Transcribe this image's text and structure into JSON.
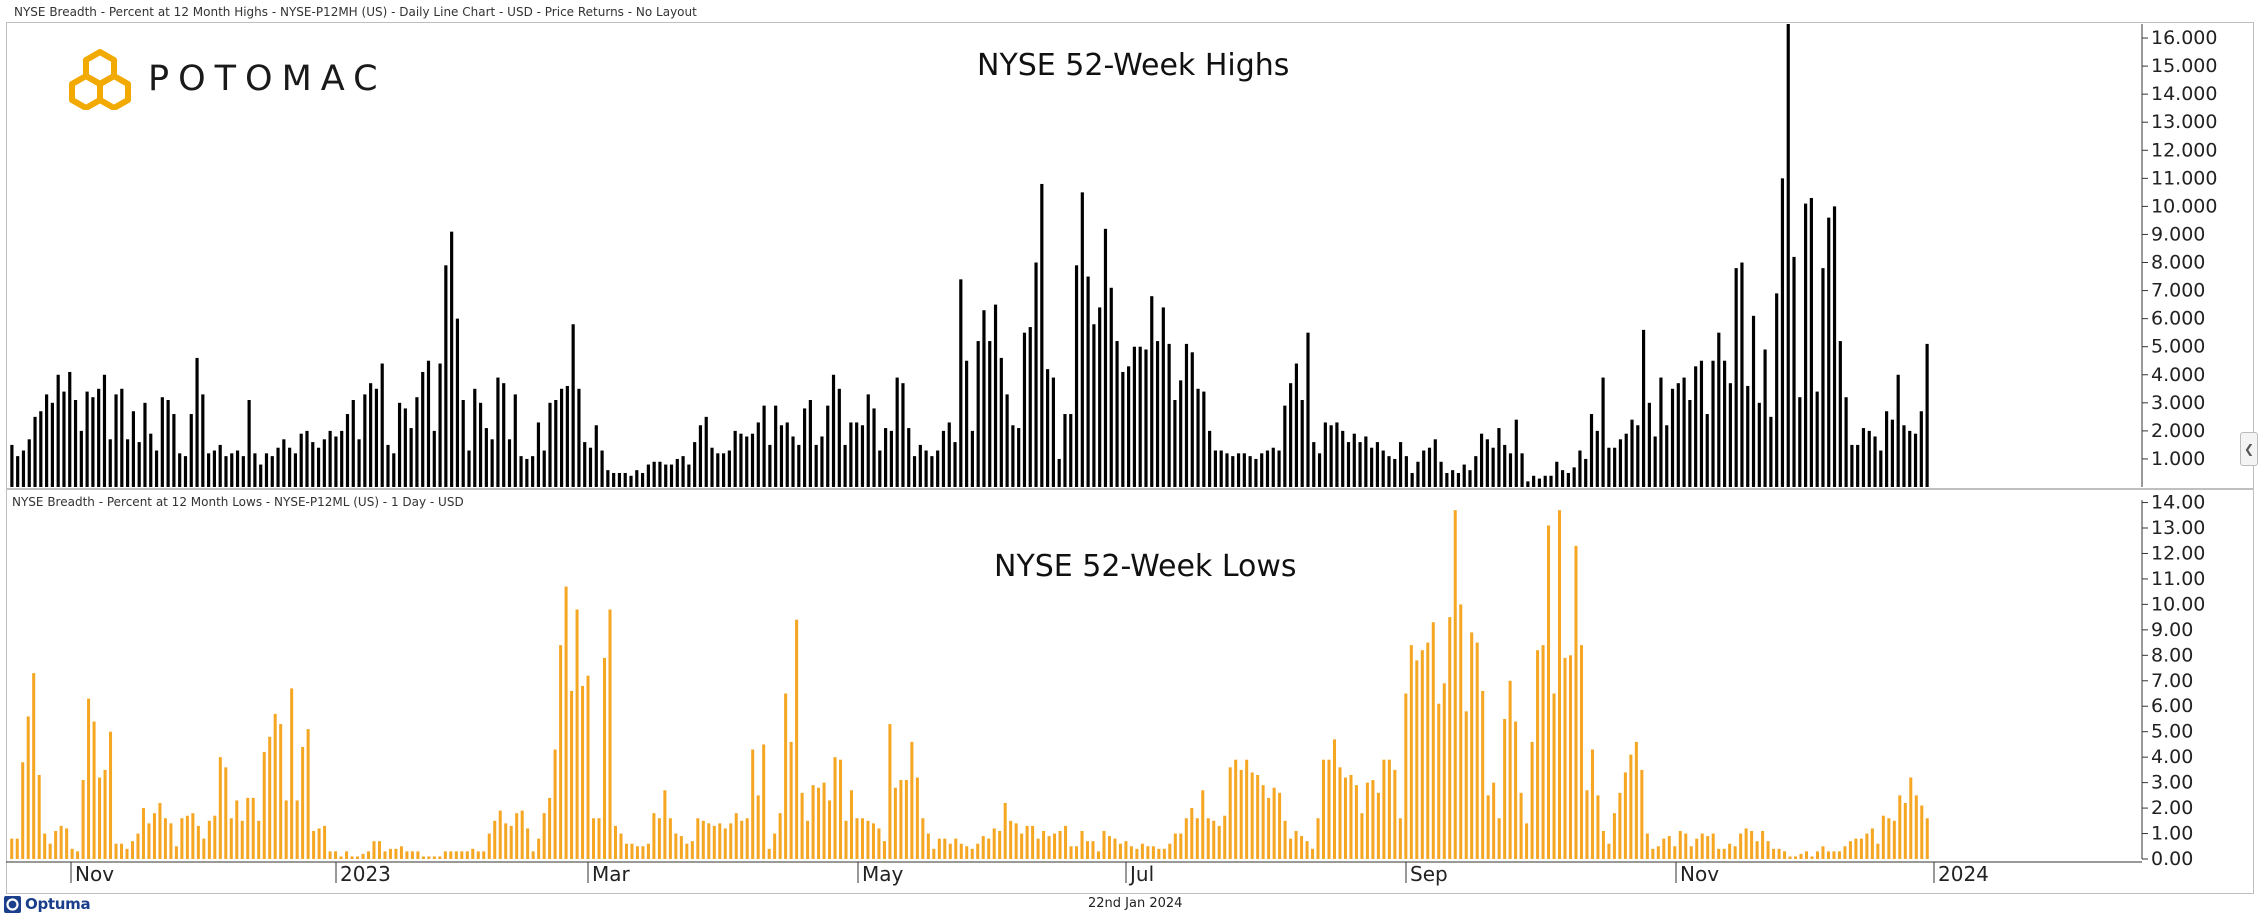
{
  "header": {
    "top_chart_label": "NYSE Breadth - Percent at 12 Month Highs - NYSE-P12MH (US) - Daily Line Chart - USD - Price Returns - No Layout",
    "bottom_chart_label": "NYSE Breadth - Percent at 12 Month Lows - NYSE-P12ML (US) - 1 Day - USD"
  },
  "logo": {
    "text": "POTOMAC",
    "icon": "hexagon-logo-icon"
  },
  "footer": {
    "date": "22nd Jan 2024",
    "brand": "Optuma",
    "brand_icon": "optuma-logo-icon"
  },
  "colors": {
    "highs_bars": "#000000",
    "lows_bars": "#f5a623",
    "logo_gold": "#f2a900",
    "optuma_blue": "#1b3f8b"
  },
  "chart_data": [
    {
      "type": "bar",
      "title": "NYSE 52-Week Highs",
      "ylim": [
        0,
        16.5
      ],
      "yticks": [
        "1.000",
        "2.000",
        "3.000",
        "4.000",
        "5.000",
        "6.000",
        "7.000",
        "8.000",
        "9.000",
        "10.000",
        "11.000",
        "12.000",
        "13.000",
        "14.000",
        "15.000",
        "16.000"
      ],
      "grid": false,
      "values": [
        1.5,
        1.1,
        1.3,
        1.7,
        2.5,
        2.7,
        3.3,
        3.0,
        4.0,
        3.4,
        4.1,
        3.1,
        2.0,
        3.4,
        3.2,
        3.5,
        4.0,
        1.7,
        3.3,
        3.5,
        1.7,
        2.7,
        1.6,
        3.0,
        1.9,
        1.3,
        3.2,
        3.1,
        2.6,
        1.2,
        1.1,
        2.6,
        4.6,
        3.3,
        1.2,
        1.3,
        1.5,
        1.1,
        1.2,
        1.3,
        1.1,
        3.1,
        1.2,
        0.8,
        1.2,
        1.1,
        1.4,
        1.7,
        1.4,
        1.2,
        1.9,
        2.0,
        1.6,
        1.4,
        1.7,
        2.0,
        1.8,
        2.0,
        2.6,
        3.1,
        1.7,
        3.3,
        3.7,
        3.5,
        4.4,
        1.5,
        1.2,
        3.0,
        2.8,
        2.1,
        3.2,
        4.1,
        4.5,
        2.0,
        4.4,
        7.9,
        9.1,
        6.0,
        3.1,
        1.3,
        3.5,
        3.0,
        2.1,
        1.7,
        3.9,
        3.7,
        1.7,
        3.3,
        1.1,
        1.0,
        1.1,
        2.3,
        1.3,
        3.0,
        3.1,
        3.5,
        3.6,
        5.8,
        3.5,
        1.6,
        1.4,
        2.2,
        1.3,
        0.6,
        0.5,
        0.5,
        0.5,
        0.4,
        0.6,
        0.5,
        0.8,
        0.9,
        0.9,
        0.8,
        0.8,
        1.0,
        1.1,
        0.8,
        1.6,
        2.2,
        2.5,
        1.4,
        1.2,
        1.2,
        1.3,
        2.0,
        1.9,
        1.8,
        1.9,
        2.3,
        2.9,
        1.5,
        2.9,
        2.2,
        2.3,
        1.8,
        1.5,
        2.8,
        3.1,
        1.5,
        1.8,
        2.9,
        4.0,
        3.5,
        1.5,
        2.3,
        2.3,
        2.2,
        3.3,
        2.8,
        1.3,
        2.1,
        2.0,
        3.9,
        3.7,
        2.1,
        1.1,
        1.5,
        1.3,
        1.1,
        1.3,
        2.0,
        2.3,
        1.6,
        7.4,
        4.5,
        2.0,
        5.2,
        6.3,
        5.2,
        6.5,
        4.6,
        3.3,
        2.2,
        2.1,
        5.5,
        5.7,
        8.0,
        10.8,
        4.2,
        3.9,
        1.0,
        2.6,
        2.6,
        7.9,
        10.5,
        7.5,
        5.8,
        6.4,
        9.2,
        7.1,
        5.2,
        4.1,
        4.3,
        5.0,
        5.0,
        4.9,
        6.8,
        5.2,
        6.4,
        5.1,
        3.1,
        3.8,
        5.1,
        4.8,
        3.5,
        3.4,
        2.0,
        1.3,
        1.3,
        1.2,
        1.1,
        1.2,
        1.2,
        1.1,
        1.0,
        1.2,
        1.3,
        1.4,
        1.3,
        2.9,
        3.7,
        4.4,
        3.1,
        5.5,
        1.6,
        1.2,
        2.3,
        2.2,
        2.3,
        2.0,
        1.6,
        1.9,
        1.6,
        1.8,
        1.4,
        1.6,
        1.3,
        1.1,
        1.0,
        1.6,
        1.1,
        0.5,
        0.9,
        1.3,
        1.4,
        1.7,
        0.9,
        0.5,
        0.6,
        0.5,
        0.8,
        0.6,
        1.1,
        1.9,
        1.7,
        1.4,
        2.1,
        1.5,
        1.2,
        2.4,
        1.2,
        0.2,
        0.4,
        0.3,
        0.4,
        0.4,
        0.9,
        0.6,
        0.5,
        0.7,
        1.3,
        1.0,
        2.6,
        2.0,
        3.9,
        1.4,
        1.4,
        1.7,
        1.9,
        2.4,
        2.2,
        5.6,
        3.0,
        1.8,
        3.9,
        2.2,
        3.5,
        3.7,
        3.9,
        3.1,
        4.3,
        4.5,
        2.6,
        4.5,
        5.5,
        4.5,
        3.7,
        7.8,
        8.0,
        3.6,
        6.1,
        3.0,
        4.9,
        2.5,
        6.9,
        11.0,
        16.5,
        8.2,
        3.2,
        10.1,
        10.3,
        3.4,
        7.8,
        9.6,
        10.0,
        5.2,
        3.2,
        1.5,
        1.5,
        2.1,
        2.0,
        1.8,
        1.3,
        2.7,
        2.4,
        4.0,
        2.2,
        2.0,
        1.9,
        2.7,
        5.1
      ]
    },
    {
      "type": "bar",
      "title": "NYSE 52-Week Lows",
      "ylim": [
        0,
        14.1
      ],
      "yticks": [
        "0.00",
        "1.00",
        "2.00",
        "3.00",
        "4.00",
        "5.00",
        "6.00",
        "7.00",
        "8.00",
        "9.00",
        "10.00",
        "11.00",
        "12.00",
        "13.00",
        "14.00"
      ],
      "grid": false,
      "x_labels": [
        "Nov",
        "2023",
        "Mar",
        "May",
        "Jul",
        "Sep",
        "Nov",
        "2024"
      ],
      "values": [
        0.8,
        0.8,
        3.8,
        5.6,
        7.3,
        3.3,
        1.0,
        0.6,
        1.1,
        1.3,
        1.2,
        0.4,
        0.3,
        3.1,
        6.3,
        5.4,
        3.2,
        3.5,
        5.0,
        0.6,
        0.6,
        0.4,
        0.7,
        1.0,
        2.0,
        1.4,
        1.8,
        2.2,
        1.6,
        1.4,
        0.5,
        1.6,
        1.7,
        1.8,
        1.3,
        0.8,
        1.5,
        1.7,
        4.0,
        3.6,
        1.6,
        2.3,
        1.5,
        2.4,
        2.4,
        1.5,
        4.2,
        4.8,
        5.7,
        5.3,
        2.3,
        6.7,
        2.3,
        4.4,
        5.1,
        1.1,
        1.2,
        1.3,
        0.3,
        0.3,
        0.1,
        0.3,
        0.1,
        0.1,
        0.2,
        0.3,
        0.7,
        0.7,
        0.3,
        0.4,
        0.4,
        0.5,
        0.3,
        0.3,
        0.3,
        0.1,
        0.1,
        0.1,
        0.1,
        0.3,
        0.3,
        0.3,
        0.3,
        0.3,
        0.4,
        0.3,
        0.3,
        1.0,
        1.5,
        1.9,
        1.4,
        1.3,
        1.8,
        1.9,
        1.2,
        0.3,
        0.8,
        1.8,
        2.4,
        4.3,
        8.4,
        10.7,
        6.6,
        9.8,
        6.8,
        7.2,
        1.6,
        1.6,
        7.9,
        9.8,
        1.3,
        1.0,
        0.6,
        0.6,
        0.5,
        0.5,
        0.6,
        1.8,
        1.6,
        2.7,
        1.6,
        1.0,
        0.9,
        0.6,
        0.7,
        1.6,
        1.5,
        1.4,
        1.3,
        1.4,
        1.2,
        1.4,
        1.8,
        1.5,
        1.6,
        4.3,
        2.5,
        4.5,
        0.4,
        1.0,
        1.8,
        6.5,
        4.6,
        9.4,
        2.6,
        1.5,
        2.9,
        2.8,
        3.0,
        2.3,
        4.0,
        3.9,
        1.5,
        2.7,
        1.6,
        1.6,
        1.5,
        1.4,
        1.2,
        0.7,
        5.3,
        2.8,
        3.1,
        3.1,
        4.6,
        3.2,
        1.6,
        1.0,
        0.4,
        0.8,
        0.8,
        0.6,
        0.8,
        0.6,
        0.5,
        0.4,
        0.6,
        0.9,
        0.8,
        1.2,
        1.1,
        2.2,
        1.5,
        1.4,
        1.0,
        1.3,
        1.3,
        0.8,
        1.1,
        0.9,
        1.0,
        1.1,
        1.3,
        0.5,
        0.5,
        1.1,
        0.7,
        0.7,
        0.3,
        1.1,
        0.9,
        0.8,
        0.6,
        0.7,
        0.5,
        0.4,
        0.6,
        0.5,
        0.5,
        0.4,
        0.4,
        0.6,
        1.0,
        1.0,
        1.6,
        2.0,
        1.6,
        2.7,
        1.6,
        1.5,
        1.3,
        1.7,
        3.6,
        3.9,
        3.5,
        3.9,
        3.4,
        3.3,
        2.9,
        2.4,
        2.8,
        2.6,
        1.5,
        0.8,
        1.1,
        0.9,
        0.7,
        0.4,
        1.6,
        3.9,
        3.9,
        4.7,
        3.6,
        3.2,
        3.3,
        2.9,
        1.8,
        3.0,
        3.1,
        2.6,
        3.9,
        3.9,
        3.5,
        1.6,
        6.5,
        8.4,
        7.8,
        8.2,
        8.5,
        9.3,
        6.1,
        6.9,
        9.5,
        13.7,
        10.0,
        5.8,
        8.9,
        8.5,
        6.6,
        2.5,
        3.0,
        1.6,
        5.5,
        7.0,
        5.4,
        2.6,
        1.4,
        4.6,
        8.2,
        8.4,
        13.1,
        6.5,
        13.7,
        7.9,
        8.0,
        12.3,
        8.4,
        2.7,
        4.3,
        2.5,
        1.1,
        0.6,
        1.8,
        2.6,
        3.4,
        4.1,
        4.6,
        3.5,
        1.0,
        0.4,
        0.5,
        0.8,
        0.9,
        0.5,
        1.1,
        1.0,
        0.5,
        0.8,
        1.0,
        0.9,
        1.0,
        0.4,
        0.4,
        0.6,
        0.5,
        1.0,
        1.2,
        1.1,
        0.7,
        1.1,
        0.7,
        0.4,
        0.4,
        0.3,
        0.1,
        0.1,
        0.2,
        0.3,
        0.1,
        0.3,
        0.5,
        0.3,
        0.3,
        0.3,
        0.5,
        0.7,
        0.8,
        0.8,
        1.0,
        1.2,
        0.6,
        1.7,
        1.6,
        1.5,
        2.5,
        2.2,
        3.2,
        2.5,
        2.1,
        1.6
      ]
    }
  ]
}
